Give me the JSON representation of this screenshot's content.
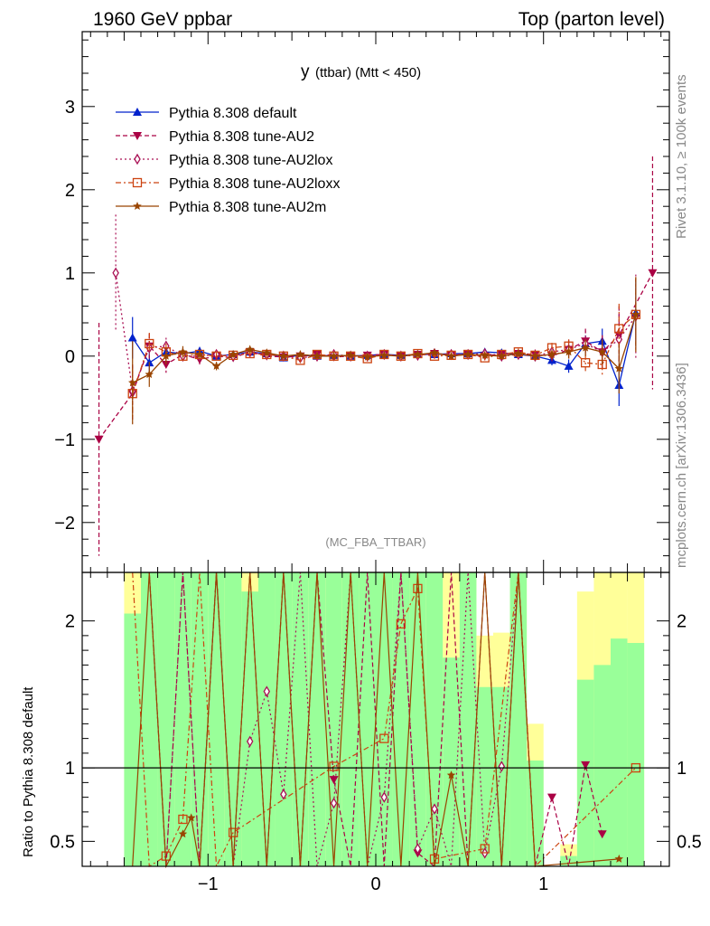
{
  "header": {
    "left": "1960 GeV ppbar",
    "right": "Top (parton level)"
  },
  "side_labels": {
    "rivet": "Rivet 3.1.10, ≥ 100k events",
    "mcplots": "mcplots.cern.ch [arXiv:1306.3436]"
  },
  "colors": {
    "default": "#0022cc",
    "au2": "#aa0044",
    "au2lox": "#aa1155",
    "au2loxx": "#cc4411",
    "au2m": "#994400",
    "band_green": "#99ff99",
    "band_yellow": "#ffff99"
  },
  "chart_data": [
    {
      "type": "line",
      "title_main": "y",
      "title_sub": "(ttbar) (Mtt < 450)",
      "watermark": "(MC_FBA_TTBAR)",
      "xlim": [
        -1.75,
        1.75
      ],
      "ylim": [
        -2.6,
        3.9
      ],
      "x_ticks": [
        -1,
        0,
        1
      ],
      "y_ticks": [
        -2,
        -1,
        0,
        1,
        2,
        3
      ],
      "y_tick_labels": [
        "−2",
        "−1",
        "0",
        "1",
        "2",
        "3"
      ],
      "x_tick_labels": [
        "−1",
        "0",
        "1"
      ],
      "legend_position": "top-left",
      "series": [
        {
          "name": "Pythia 8.308 default",
          "key": "default",
          "marker": "triangle-up",
          "dash": "",
          "x": [
            -1.45,
            -1.35,
            -1.25,
            -1.15,
            -1.05,
            -0.95,
            -0.85,
            -0.75,
            -0.65,
            -0.55,
            -0.45,
            -0.35,
            -0.25,
            -0.15,
            -0.05,
            0.05,
            0.15,
            0.25,
            0.35,
            0.45,
            0.55,
            0.65,
            0.75,
            0.85,
            0.95,
            1.05,
            1.15,
            1.25,
            1.35,
            1.45,
            1.55
          ],
          "y": [
            0.22,
            -0.08,
            0.05,
            0.03,
            0.06,
            0.0,
            0.02,
            0.05,
            0.03,
            -0.02,
            0.01,
            0.0,
            0.01,
            0.0,
            0.01,
            0.02,
            0.01,
            0.02,
            0.02,
            0.03,
            0.03,
            0.05,
            0.04,
            0.02,
            0.0,
            -0.05,
            -0.12,
            0.15,
            0.18,
            -0.35,
            0.52
          ],
          "err": [
            0.25,
            0.12,
            0.08,
            0.06,
            0.05,
            0.04,
            0.04,
            0.03,
            0.03,
            0.03,
            0.03,
            0.03,
            0.03,
            0.03,
            0.03,
            0.03,
            0.03,
            0.03,
            0.03,
            0.03,
            0.03,
            0.03,
            0.04,
            0.04,
            0.05,
            0.06,
            0.08,
            0.1,
            0.15,
            0.25,
            0.4
          ]
        },
        {
          "name": "Pythia 8.308 tune-AU2",
          "key": "au2",
          "marker": "triangle-down",
          "dash": "5,3",
          "x": [
            -1.65,
            -1.45,
            -1.35,
            -1.25,
            -1.15,
            -1.05,
            -0.95,
            -0.85,
            -0.75,
            -0.65,
            -0.55,
            -0.45,
            -0.35,
            -0.25,
            -0.15,
            -0.05,
            0.05,
            0.15,
            0.25,
            0.35,
            0.45,
            0.55,
            0.65,
            0.75,
            0.85,
            0.95,
            1.05,
            1.15,
            1.25,
            1.35,
            1.45,
            1.65
          ],
          "y": [
            -1.0,
            -0.45,
            0.12,
            -0.1,
            0.02,
            -0.04,
            0.0,
            -0.02,
            0.05,
            0.0,
            -0.01,
            0.0,
            0.02,
            -0.01,
            0.0,
            0.01,
            0.02,
            0.0,
            0.02,
            0.03,
            0.01,
            0.02,
            0.0,
            0.03,
            0.03,
            0.02,
            0.0,
            0.08,
            0.18,
            0.05,
            0.25,
            1.0
          ],
          "err": [
            1.4,
            0.35,
            0.15,
            0.1,
            0.07,
            0.06,
            0.05,
            0.04,
            0.04,
            0.03,
            0.03,
            0.03,
            0.03,
            0.03,
            0.03,
            0.03,
            0.03,
            0.03,
            0.03,
            0.03,
            0.03,
            0.03,
            0.04,
            0.04,
            0.05,
            0.06,
            0.08,
            0.12,
            0.15,
            0.2,
            0.35,
            1.4
          ]
        },
        {
          "name": "Pythia 8.308 tune-AU2lox",
          "key": "au2lox",
          "marker": "diamond-open",
          "dash": "2,3",
          "x": [
            -1.55,
            -1.45,
            -1.35,
            -1.25,
            -1.15,
            -1.05,
            -0.95,
            -0.85,
            -0.75,
            -0.65,
            -0.55,
            -0.45,
            -0.35,
            -0.25,
            -0.15,
            -0.05,
            0.05,
            0.15,
            0.25,
            0.35,
            0.45,
            0.55,
            0.65,
            0.75,
            0.85,
            0.95,
            1.05,
            1.15,
            1.25,
            1.35,
            1.45,
            1.55
          ],
          "y": [
            1.0,
            -0.42,
            0.1,
            0.12,
            0.0,
            0.0,
            0.02,
            0.0,
            0.05,
            0.02,
            0.0,
            -0.02,
            0.0,
            0.02,
            0.0,
            0.0,
            0.02,
            0.0,
            0.01,
            0.03,
            0.02,
            0.02,
            0.03,
            0.0,
            0.02,
            0.0,
            0.05,
            0.08,
            0.15,
            0.05,
            0.2,
            0.48
          ],
          "err": [
            0.7,
            0.3,
            0.13,
            0.1,
            0.07,
            0.05,
            0.04,
            0.04,
            0.03,
            0.03,
            0.03,
            0.03,
            0.03,
            0.03,
            0.03,
            0.03,
            0.03,
            0.03,
            0.03,
            0.03,
            0.03,
            0.03,
            0.04,
            0.04,
            0.05,
            0.06,
            0.08,
            0.1,
            0.15,
            0.2,
            0.3,
            0.5
          ]
        },
        {
          "name": "Pythia 8.308 tune-AU2loxx",
          "key": "au2loxx",
          "marker": "square-open",
          "dash": "6,3,2,3",
          "x": [
            -1.45,
            -1.35,
            -1.25,
            -1.15,
            -1.05,
            -0.95,
            -0.85,
            -0.75,
            -0.65,
            -0.55,
            -0.45,
            -0.35,
            -0.25,
            -0.15,
            -0.05,
            0.05,
            0.15,
            0.25,
            0.35,
            0.45,
            0.55,
            0.65,
            0.75,
            0.85,
            0.95,
            1.05,
            1.15,
            1.25,
            1.35,
            1.45,
            1.55
          ],
          "y": [
            -0.45,
            0.15,
            0.05,
            0.0,
            0.02,
            0.0,
            0.01,
            0.03,
            0.02,
            0.0,
            -0.05,
            0.02,
            0.0,
            0.0,
            -0.03,
            0.02,
            0.0,
            0.03,
            0.0,
            0.01,
            0.02,
            -0.02,
            0.02,
            0.05,
            0.01,
            0.1,
            0.12,
            -0.08,
            -0.1,
            0.33,
            0.5
          ],
          "err": [
            0.3,
            0.13,
            0.1,
            0.07,
            0.05,
            0.04,
            0.04,
            0.03,
            0.03,
            0.03,
            0.03,
            0.03,
            0.03,
            0.03,
            0.03,
            0.03,
            0.03,
            0.03,
            0.03,
            0.03,
            0.03,
            0.03,
            0.04,
            0.04,
            0.05,
            0.06,
            0.08,
            0.1,
            0.15,
            0.3,
            0.45
          ]
        },
        {
          "name": "Pythia 8.308 tune-AU2m",
          "key": "au2m",
          "marker": "star",
          "dash": "",
          "x": [
            -1.45,
            -1.35,
            -1.25,
            -1.15,
            -1.05,
            -0.95,
            -0.85,
            -0.75,
            -0.65,
            -0.55,
            -0.45,
            -0.35,
            -0.25,
            -0.15,
            -0.05,
            0.05,
            0.15,
            0.25,
            0.35,
            0.45,
            0.55,
            0.65,
            0.75,
            0.85,
            0.95,
            1.05,
            1.15,
            1.25,
            1.35,
            1.45,
            1.55
          ],
          "y": [
            -0.32,
            -0.22,
            0.0,
            0.05,
            0.02,
            -0.12,
            0.02,
            0.08,
            0.04,
            0.0,
            0.02,
            0.0,
            0.0,
            0.01,
            -0.01,
            0.01,
            0.0,
            0.02,
            0.04,
            0.0,
            0.02,
            0.01,
            0.0,
            0.03,
            0.0,
            0.02,
            0.05,
            0.1,
            0.05,
            -0.15,
            0.5
          ],
          "err": [
            0.5,
            0.15,
            0.1,
            0.07,
            0.05,
            0.05,
            0.04,
            0.04,
            0.03,
            0.03,
            0.03,
            0.03,
            0.03,
            0.03,
            0.03,
            0.03,
            0.03,
            0.03,
            0.03,
            0.03,
            0.03,
            0.03,
            0.04,
            0.04,
            0.05,
            0.06,
            0.08,
            0.1,
            0.15,
            0.3,
            0.45
          ]
        }
      ]
    },
    {
      "type": "line",
      "ylabel": "Ratio to Pythia 8.308 default",
      "xlim": [
        -1.75,
        1.75
      ],
      "ylim": [
        0.33,
        2.33
      ],
      "y_ticks": [
        0.5,
        1,
        2
      ],
      "y_tick_labels": [
        "0.5",
        "1",
        "2"
      ],
      "x_ticks": [
        -1,
        0,
        1
      ],
      "x_tick_labels": [
        "−1",
        "0",
        "1"
      ],
      "reference_line": 1,
      "bands": {
        "x_edges": [
          -1.5,
          -1.4,
          -1.3,
          -1.2,
          -1.1,
          -1.0,
          -0.9,
          -0.8,
          -0.7,
          -0.6,
          -0.5,
          -0.4,
          -0.3,
          -0.2,
          -0.1,
          0.0,
          0.1,
          0.2,
          0.3,
          0.4,
          0.5,
          0.6,
          0.7,
          0.8,
          0.9,
          1.0,
          1.1,
          1.2,
          1.3,
          1.4,
          1.5,
          1.6
        ],
        "green": [
          2.05,
          2.33,
          2.33,
          2.33,
          2.33,
          2.33,
          2.33,
          2.2,
          2.33,
          2.33,
          2.33,
          2.33,
          2.33,
          2.33,
          2.33,
          2.33,
          2.33,
          2.33,
          2.33,
          1.75,
          2.33,
          1.55,
          1.55,
          2.33,
          1.05,
          0.33,
          0.4,
          1.6,
          1.7,
          1.88,
          1.85
        ],
        "yellow": [
          2.33,
          2.33,
          2.33,
          2.33,
          2.33,
          2.33,
          2.33,
          2.33,
          2.33,
          2.33,
          2.33,
          2.33,
          2.33,
          2.33,
          2.33,
          2.33,
          2.33,
          2.33,
          2.33,
          2.33,
          2.33,
          1.9,
          1.92,
          2.33,
          1.3,
          0.33,
          0.48,
          2.2,
          2.33,
          2.33,
          2.33
        ]
      },
      "series": [
        {
          "key": "au2",
          "marker": "triangle-down",
          "dash": "5,3",
          "x": [
            -1.35,
            -1.25,
            -1.15,
            -1.05,
            -0.95,
            -0.85,
            -0.75,
            -0.65,
            -0.55,
            -0.45,
            -0.35,
            -0.25,
            -0.15,
            -0.05,
            0.05,
            0.15,
            0.25,
            0.35,
            0.45,
            0.55,
            0.65,
            0.75,
            0.85,
            0.95,
            1.05,
            1.15,
            1.25,
            1.35
          ],
          "y": [
            2.33,
            0.33,
            2.33,
            0.33,
            2.33,
            0.33,
            2.33,
            0.33,
            2.33,
            0.33,
            2.33,
            0.92,
            0.33,
            2.33,
            0.33,
            2.33,
            0.42,
            0.33,
            2.33,
            0.33,
            2.33,
            0.33,
            2.33,
            0.33,
            0.8,
            0.33,
            1.02,
            0.55
          ]
        },
        {
          "key": "au2lox",
          "marker": "diamond-open",
          "dash": "2,3",
          "x": [
            -1.35,
            -1.25,
            -1.15,
            -1.05,
            -0.95,
            -0.85,
            -0.75,
            -0.65,
            -0.55,
            -0.45,
            -0.35,
            -0.25,
            -0.15,
            -0.05,
            0.05,
            0.15,
            0.25,
            0.35,
            0.45,
            0.55,
            0.65,
            0.75,
            0.85,
            0.95
          ],
          "y": [
            2.33,
            0.33,
            2.33,
            0.33,
            2.33,
            0.33,
            1.18,
            1.52,
            0.82,
            2.33,
            0.33,
            0.76,
            2.33,
            0.33,
            0.8,
            2.33,
            0.45,
            0.72,
            0.33,
            2.33,
            0.42,
            1.01,
            2.33,
            0.33
          ]
        },
        {
          "key": "au2loxx",
          "marker": "square-open",
          "dash": "6,3,2,3",
          "x": [
            -1.45,
            -1.35,
            -1.25,
            -1.15,
            -1.05,
            -0.95,
            -0.85,
            -0.25,
            0.05,
            0.15,
            0.25,
            0.35,
            0.65,
            0.85,
            0.95,
            1.55
          ],
          "y": [
            2.33,
            0.33,
            0.4,
            0.65,
            2.33,
            0.33,
            0.56,
            1.01,
            1.2,
            1.98,
            2.22,
            0.38,
            0.45,
            2.33,
            0.33,
            1.0
          ]
        },
        {
          "key": "au2m",
          "marker": "star",
          "dash": "",
          "x": [
            -1.45,
            -1.35,
            -1.25,
            -1.15,
            -1.1,
            -1.05,
            -0.95,
            -0.85,
            -0.75,
            -0.65,
            -0.55,
            -0.45,
            -0.35,
            -0.25,
            -0.15,
            -0.05,
            0.05,
            0.15,
            0.25,
            0.35,
            0.45,
            0.55,
            0.65,
            0.75,
            0.85,
            0.95,
            1.45
          ],
          "y": [
            0.33,
            2.33,
            0.33,
            0.55,
            0.66,
            0.33,
            2.33,
            0.33,
            2.33,
            0.33,
            2.33,
            0.33,
            2.33,
            0.33,
            2.33,
            0.33,
            2.33,
            0.33,
            2.33,
            0.33,
            0.95,
            0.33,
            2.33,
            0.33,
            2.33,
            0.33,
            0.38
          ]
        }
      ]
    }
  ]
}
